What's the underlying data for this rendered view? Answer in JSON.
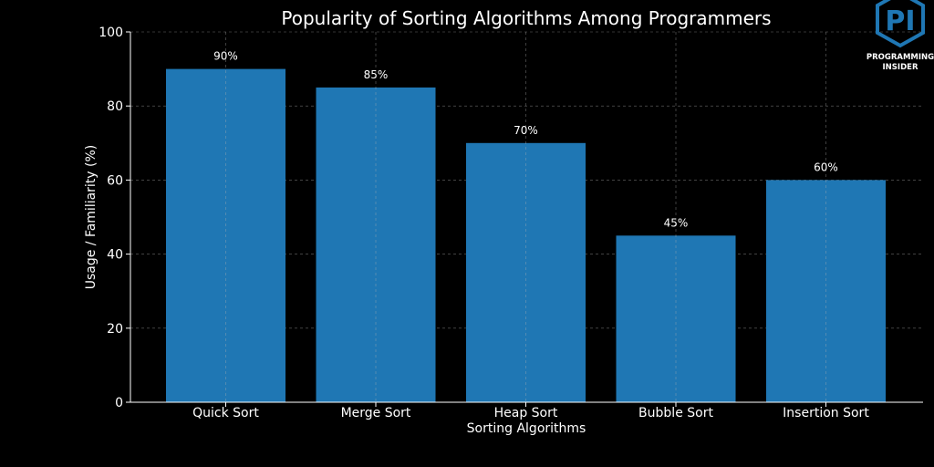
{
  "chart_data": {
    "type": "bar",
    "title": "Popularity of Sorting Algorithms Among Programmers",
    "xlabel": "Sorting Algorithms",
    "ylabel": "Usage / Familiarity (%)",
    "categories": [
      "Quick Sort",
      "Merge Sort",
      "Heap Sort",
      "Bubble Sort",
      "Insertion Sort"
    ],
    "values": [
      90,
      85,
      70,
      45,
      60
    ],
    "data_labels": [
      "90%",
      "85%",
      "70%",
      "45%",
      "60%"
    ],
    "ylim": [
      0,
      100
    ],
    "yticks": [
      0,
      20,
      40,
      60,
      80,
      100
    ],
    "grid": true,
    "bar_color": "#1f77b4",
    "background_color": "#000000"
  },
  "logo": {
    "monogram": "PI",
    "line1": "PROGRAMMING",
    "line2": "INSIDER",
    "color": "#1f77b4"
  }
}
